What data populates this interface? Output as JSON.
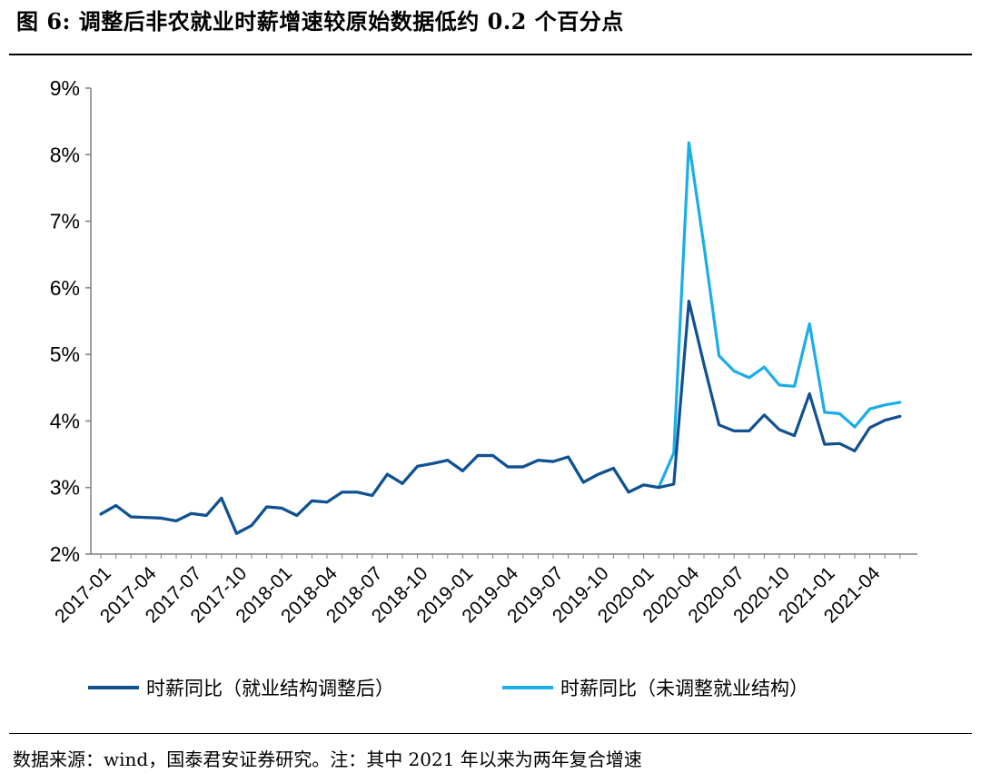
{
  "header": {
    "title": "图 6: 调整后非农就业时薪增速较原始数据低约 0.2 个百分点"
  },
  "footer": {
    "source": "数据来源：wind，国泰君安证券研究。注：其中 2021 年以来为两年复合增速"
  },
  "colors": {
    "adjusted": "#12508F",
    "unadjusted": "#1AADE8",
    "axis": "#808080"
  },
  "chart_data": {
    "type": "line",
    "y_unit": "%",
    "ylim": [
      2,
      9
    ],
    "yticks": [
      "2%",
      "3%",
      "4%",
      "5%",
      "6%",
      "7%",
      "8%",
      "9%"
    ],
    "grid": false,
    "legend_position": "bottom",
    "x": [
      "2017-01",
      "2017-02",
      "2017-03",
      "2017-04",
      "2017-05",
      "2017-06",
      "2017-07",
      "2017-08",
      "2017-09",
      "2017-10",
      "2017-11",
      "2017-12",
      "2018-01",
      "2018-02",
      "2018-03",
      "2018-04",
      "2018-05",
      "2018-06",
      "2018-07",
      "2018-08",
      "2018-09",
      "2018-10",
      "2018-11",
      "2018-12",
      "2019-01",
      "2019-02",
      "2019-03",
      "2019-04",
      "2019-05",
      "2019-06",
      "2019-07",
      "2019-08",
      "2019-09",
      "2019-10",
      "2019-11",
      "2019-12",
      "2020-01",
      "2020-02",
      "2020-03",
      "2020-04",
      "2020-05",
      "2020-06",
      "2020-07",
      "2020-08",
      "2020-09",
      "2020-10",
      "2020-11",
      "2020-12",
      "2021-01",
      "2021-02",
      "2021-03",
      "2021-04",
      "2021-05",
      "2021-06"
    ],
    "xtick_labels": [
      "2017-01",
      "2017-04",
      "2017-07",
      "2017-10",
      "2018-01",
      "2018-04",
      "2018-07",
      "2018-10",
      "2019-01",
      "2019-04",
      "2019-07",
      "2019-10",
      "2020-01",
      "2020-04",
      "2020-07",
      "2020-10",
      "2021-01",
      "2021-04"
    ],
    "series": [
      {
        "name": "时薪同比（就业结构调整后）",
        "values": [
          2.6,
          2.73,
          2.56,
          2.55,
          2.54,
          2.5,
          2.61,
          2.58,
          2.84,
          2.31,
          2.43,
          2.71,
          2.69,
          2.58,
          2.8,
          2.78,
          2.93,
          2.93,
          2.88,
          3.2,
          3.06,
          3.32,
          3.36,
          3.41,
          3.25,
          3.48,
          3.48,
          3.31,
          3.31,
          3.41,
          3.39,
          3.46,
          3.08,
          3.2,
          3.29,
          2.93,
          3.04,
          3.0,
          3.05,
          5.8,
          4.85,
          3.94,
          3.85,
          3.85,
          4.09,
          3.87,
          3.78,
          4.41,
          3.65,
          3.66,
          3.55,
          3.9,
          4.01,
          4.07
        ]
      },
      {
        "name": "时薪同比（未调整就业结构）",
        "values": [
          2.6,
          2.73,
          2.56,
          2.55,
          2.54,
          2.5,
          2.61,
          2.58,
          2.84,
          2.31,
          2.43,
          2.71,
          2.69,
          2.58,
          2.8,
          2.78,
          2.93,
          2.93,
          2.88,
          3.2,
          3.06,
          3.32,
          3.36,
          3.41,
          3.25,
          3.48,
          3.48,
          3.31,
          3.31,
          3.41,
          3.39,
          3.46,
          3.08,
          3.2,
          3.29,
          2.93,
          3.04,
          3.0,
          3.52,
          8.18,
          6.63,
          4.98,
          4.75,
          4.65,
          4.81,
          4.54,
          4.52,
          5.46,
          4.13,
          4.11,
          3.91,
          4.18,
          4.24,
          4.28
        ]
      }
    ]
  }
}
